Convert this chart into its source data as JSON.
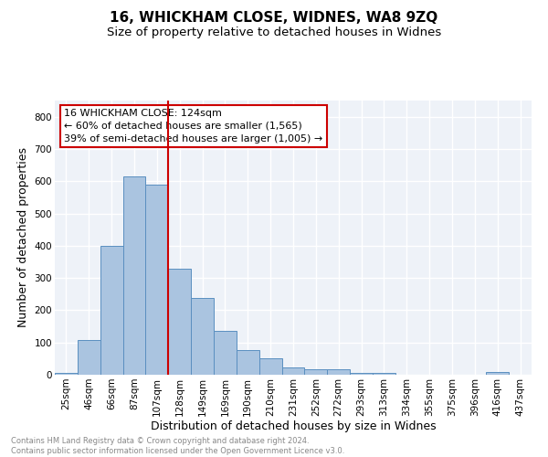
{
  "title": "16, WHICKHAM CLOSE, WIDNES, WA8 9ZQ",
  "subtitle": "Size of property relative to detached houses in Widnes",
  "xlabel": "Distribution of detached houses by size in Widnes",
  "ylabel": "Number of detached properties",
  "categories": [
    "25sqm",
    "46sqm",
    "66sqm",
    "87sqm",
    "107sqm",
    "128sqm",
    "149sqm",
    "169sqm",
    "190sqm",
    "210sqm",
    "231sqm",
    "252sqm",
    "272sqm",
    "293sqm",
    "313sqm",
    "334sqm",
    "355sqm",
    "375sqm",
    "396sqm",
    "416sqm",
    "437sqm"
  ],
  "values": [
    7,
    107,
    400,
    615,
    590,
    330,
    237,
    137,
    77,
    52,
    22,
    18,
    16,
    7,
    5,
    0,
    0,
    0,
    0,
    8,
    0
  ],
  "bar_color": "#aac4e0",
  "bar_edge_color": "#5a8fc0",
  "vline_color": "#cc0000",
  "vline_x": 4.5,
  "annotation_text": "16 WHICKHAM CLOSE: 124sqm\n← 60% of detached houses are smaller (1,565)\n39% of semi-detached houses are larger (1,005) →",
  "annotation_box_color": "#ffffff",
  "annotation_box_edge_color": "#cc0000",
  "footer_text": "Contains HM Land Registry data © Crown copyright and database right 2024.\nContains public sector information licensed under the Open Government Licence v3.0.",
  "ylim": [
    0,
    850
  ],
  "yticks": [
    0,
    100,
    200,
    300,
    400,
    500,
    600,
    700,
    800
  ],
  "background_color": "#eef2f8",
  "grid_color": "#ffffff",
  "title_fontsize": 11,
  "subtitle_fontsize": 9.5,
  "tick_fontsize": 7.5,
  "ylabel_fontsize": 9,
  "xlabel_fontsize": 9,
  "annotation_fontsize": 8,
  "footer_fontsize": 6
}
